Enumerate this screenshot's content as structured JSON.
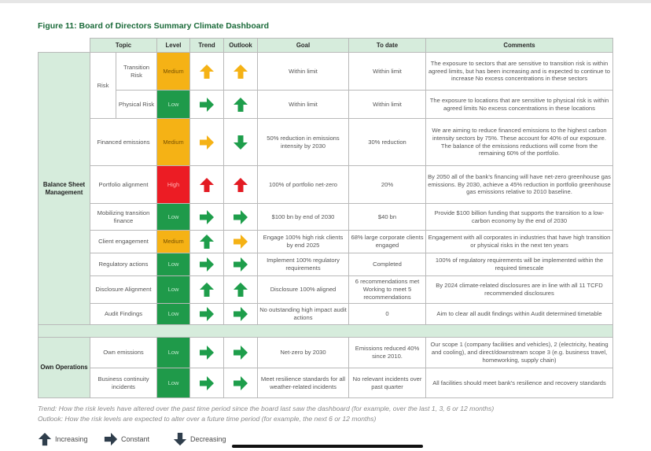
{
  "title": "Figure 11: Board of Directors Summary Climate Dashboard",
  "headers": {
    "topic": "Topic",
    "level": "Level",
    "trend": "Trend",
    "outlook": "Outlook",
    "goal": "Goal",
    "to_date": "To date",
    "comments": "Comments"
  },
  "colors": {
    "low": "#1f9a4a",
    "medium": "#f5b215",
    "high": "#ec1c24",
    "arrow_up_low": "#1e9e4b",
    "arrow_medium": "#f5b215",
    "arrow_high": "#e31b23",
    "header_bg": "#d6ecdc",
    "title": "#1b6b3a"
  },
  "sections": [
    {
      "label": "Balance Sheet Management",
      "risk_group_label": "Risk",
      "rows": [
        {
          "topic": "Transition Risk",
          "level": "Medium",
          "level_class": "medium",
          "trend": "up-icon",
          "trend_color": "medium",
          "outlook": "up-icon",
          "outlook_color": "medium",
          "goal": "Within limit",
          "to_date": "Within limit",
          "comments": "The exposure to sectors that are sensitive to transition risk is within agreed limits, but has been increasing and is expected to continue to increase No excess concentrations in these sectors"
        },
        {
          "topic": "Physical Risk",
          "level": "Low",
          "level_class": "low",
          "trend": "right-icon",
          "trend_color": "low",
          "outlook": "up-icon",
          "outlook_color": "low",
          "goal": "Within limit",
          "to_date": "Within limit",
          "comments": "The exposure to locations that are sensitive to physical risk is within agreed limits No excess concentrations in these locations"
        },
        {
          "topic": "Financed emissions",
          "level": "Medium",
          "level_class": "medium",
          "trend": "right-icon",
          "trend_color": "medium",
          "outlook": "down-icon",
          "outlook_color": "low",
          "goal": "50% reduction in emissions intensity by 2030",
          "to_date": "30% reduction",
          "comments": "We are aiming to reduce financed emissions to the highest carbon intensity sectors by 75%. These account for 40% of our exposure. The balance of the emissions reductions will come from the remaining 60% of the portfolio."
        },
        {
          "topic": "Portfolio alignment",
          "level": "High",
          "level_class": "high",
          "trend": "up-icon",
          "trend_color": "high",
          "outlook": "up-icon",
          "outlook_color": "high",
          "goal": "100% of portfolio net-zero",
          "to_date": "20%",
          "comments": "By 2050 all of the bank's financing will have net-zero greenhouse gas emissions. By 2030, achieve a 45% reduction in portfolio greenhouse gas emissions relative to 2010 baseline."
        },
        {
          "topic": "Mobilizing transition finance",
          "level": "Low",
          "level_class": "low",
          "trend": "right-icon",
          "trend_color": "low",
          "outlook": "right-icon",
          "outlook_color": "low",
          "goal": "$100 bn by end of 2030",
          "to_date": "$40 bn",
          "comments": "Provide $100 billion funding that supports the transition to a low-carbon economy by the end of 2030"
        },
        {
          "topic": "Client engagement",
          "level": "Medium",
          "level_class": "medium",
          "trend": "up-icon",
          "trend_color": "low",
          "outlook": "right-icon",
          "outlook_color": "medium",
          "goal": "Engage 100% high risk clients by end 2025",
          "to_date": "68% large corporate clients engaged",
          "comments": "Engagement with all corporates in industries that have high transition or physical risks in the next ten years"
        },
        {
          "topic": "Regulatory actions",
          "level": "Low",
          "level_class": "low",
          "trend": "right-icon",
          "trend_color": "low",
          "outlook": "right-icon",
          "outlook_color": "low",
          "goal": "Implement 100% regulatory requirements",
          "to_date": "Completed",
          "comments": "100% of regulatory requirements will be implemented within the required timescale"
        },
        {
          "topic": "Disclosure Alignment",
          "level": "Low",
          "level_class": "low",
          "trend": "up-icon",
          "trend_color": "low",
          "outlook": "up-icon",
          "outlook_color": "low",
          "goal": "Disclosure 100% aligned",
          "to_date": "6 recommendations met Working to meet 5 recommendations",
          "comments": "By 2024 climate-related disclosures are in line with all 11 TCFD recommended disclosures"
        },
        {
          "topic": "Audit Findings",
          "level": "Low",
          "level_class": "low",
          "trend": "right-icon",
          "trend_color": "low",
          "outlook": "right-icon",
          "outlook_color": "low",
          "goal": "No outstanding high impact audit actions",
          "to_date": "0",
          "comments": "Aim to clear all audit findings within Audit determined timetable"
        }
      ]
    },
    {
      "label": "Own Operations",
      "rows": [
        {
          "topic": "Own emissions",
          "level": "Low",
          "level_class": "low",
          "trend": "right-icon",
          "trend_color": "low",
          "outlook": "right-icon",
          "outlook_color": "low",
          "goal": "Net-zero by 2030",
          "to_date": "Emissions reduced 40% since 2010.",
          "comments": "Our scope 1 (company facilities and vehicles), 2 (electricity, heating and cooling), and direct/downstream scope 3 (e.g. business travel, homeworking, supply chain)"
        },
        {
          "topic": "Business continuity incidents",
          "level": "Low",
          "level_class": "low",
          "trend": "right-icon",
          "trend_color": "low",
          "outlook": "right-icon",
          "outlook_color": "low",
          "goal": "Meet resilience standards for all weather-related incidents",
          "to_date": "No relevant incidents over past quarter",
          "comments": "All facilities should meet bank's resilience and recovery standards"
        }
      ]
    }
  ],
  "notes": {
    "trend": "Trend: How the risk levels have altered over the past time period since the board last saw the dashboard (for example, over the last 1, 3, 6 or 12 months)",
    "outlook": "Outlook: How the risk levels are expected to alter over a future time period (for example, the next 6 or 12 months)"
  },
  "legend": [
    {
      "icon": "up-icon",
      "label": "Increasing"
    },
    {
      "icon": "right-icon",
      "label": "Constant"
    },
    {
      "icon": "down-icon",
      "label": "Decreasing"
    }
  ]
}
